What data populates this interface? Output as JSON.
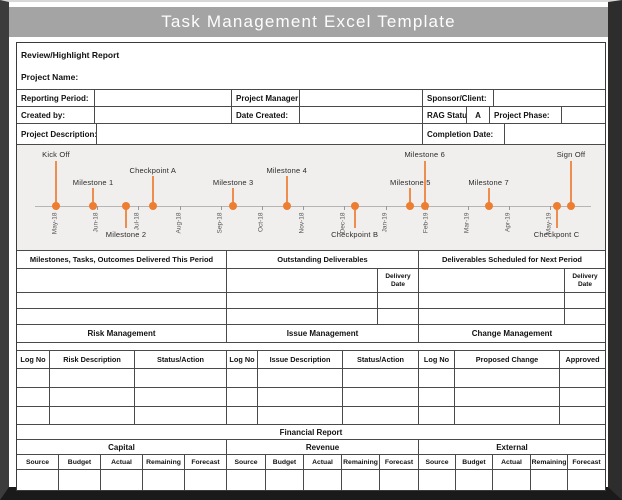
{
  "page_title": "Task Management Excel Template",
  "report_header": {
    "title": "Review/Highlight Report",
    "project_name": "Project Name:"
  },
  "info_fields": {
    "reporting_period": "Reporting Period:",
    "project_manager": "Project Manager:",
    "sponsor_client": "Sponsor/Client:",
    "created_by": "Created by:",
    "date_created": "Date Created:",
    "rag_status": "RAG Status",
    "rag_value": "A",
    "project_phase": "Project Phase:",
    "project_description": "Project Description:",
    "completion_date": "Completion Date:"
  },
  "timeline": {
    "accent_color": "#ED7D31",
    "months": [
      "May-18",
      "Jun-18",
      "Jul-18",
      "Aug-18",
      "Sep-18",
      "Oct-18",
      "Nov-18",
      "Dec-18",
      "Jan-19",
      "Feb-19",
      "Mar-19",
      "Apr-19",
      "May-19"
    ],
    "milestones": [
      {
        "label": "Kick Off",
        "month_index": 0,
        "tier": "high"
      },
      {
        "label": "Milestone 1",
        "month_index": 0.9,
        "tier": "low"
      },
      {
        "label": "Milestone 2",
        "month_index": 1.7,
        "tier": "below"
      },
      {
        "label": "Checkpoint A",
        "month_index": 2.35,
        "tier": "mid"
      },
      {
        "label": "Milestone 3",
        "month_index": 4.3,
        "tier": "low"
      },
      {
        "label": "Milestone 4",
        "month_index": 5.6,
        "tier": "mid"
      },
      {
        "label": "Checkpoint B",
        "month_index": 7.25,
        "tier": "below"
      },
      {
        "label": "Milestone 5",
        "month_index": 8.6,
        "tier": "low"
      },
      {
        "label": "Milestone 6",
        "month_index": 8.95,
        "tier": "high"
      },
      {
        "label": "Milestone 7",
        "month_index": 10.5,
        "tier": "low"
      },
      {
        "label": "Checkpont C",
        "month_index": 12.15,
        "tier": "below"
      },
      {
        "label": "Sign Off",
        "month_index": 12.5,
        "tier": "high"
      }
    ]
  },
  "deliverables": {
    "sections": [
      "Milestones, Tasks, Outcomes Delivered This Period",
      "Outstanding Deliverables",
      "Deliverables Scheduled for Next Period"
    ],
    "delivery_date": "Delivery Date"
  },
  "management": {
    "sections": [
      {
        "title": "Risk Management",
        "columns": [
          "Log No",
          "Risk Description",
          "Status/Action"
        ]
      },
      {
        "title": "Issue Management",
        "columns": [
          "Log No",
          "Issue Description",
          "Status/Action"
        ]
      },
      {
        "title": "Change Management",
        "columns": [
          "Log No",
          "Proposed Change",
          "Approved"
        ]
      }
    ]
  },
  "financial": {
    "title": "Financial Report",
    "groups": [
      "Capital",
      "Revenue",
      "External"
    ],
    "columns": [
      "Source",
      "Budget",
      "Actual",
      "Remaining",
      "Forecast"
    ]
  }
}
